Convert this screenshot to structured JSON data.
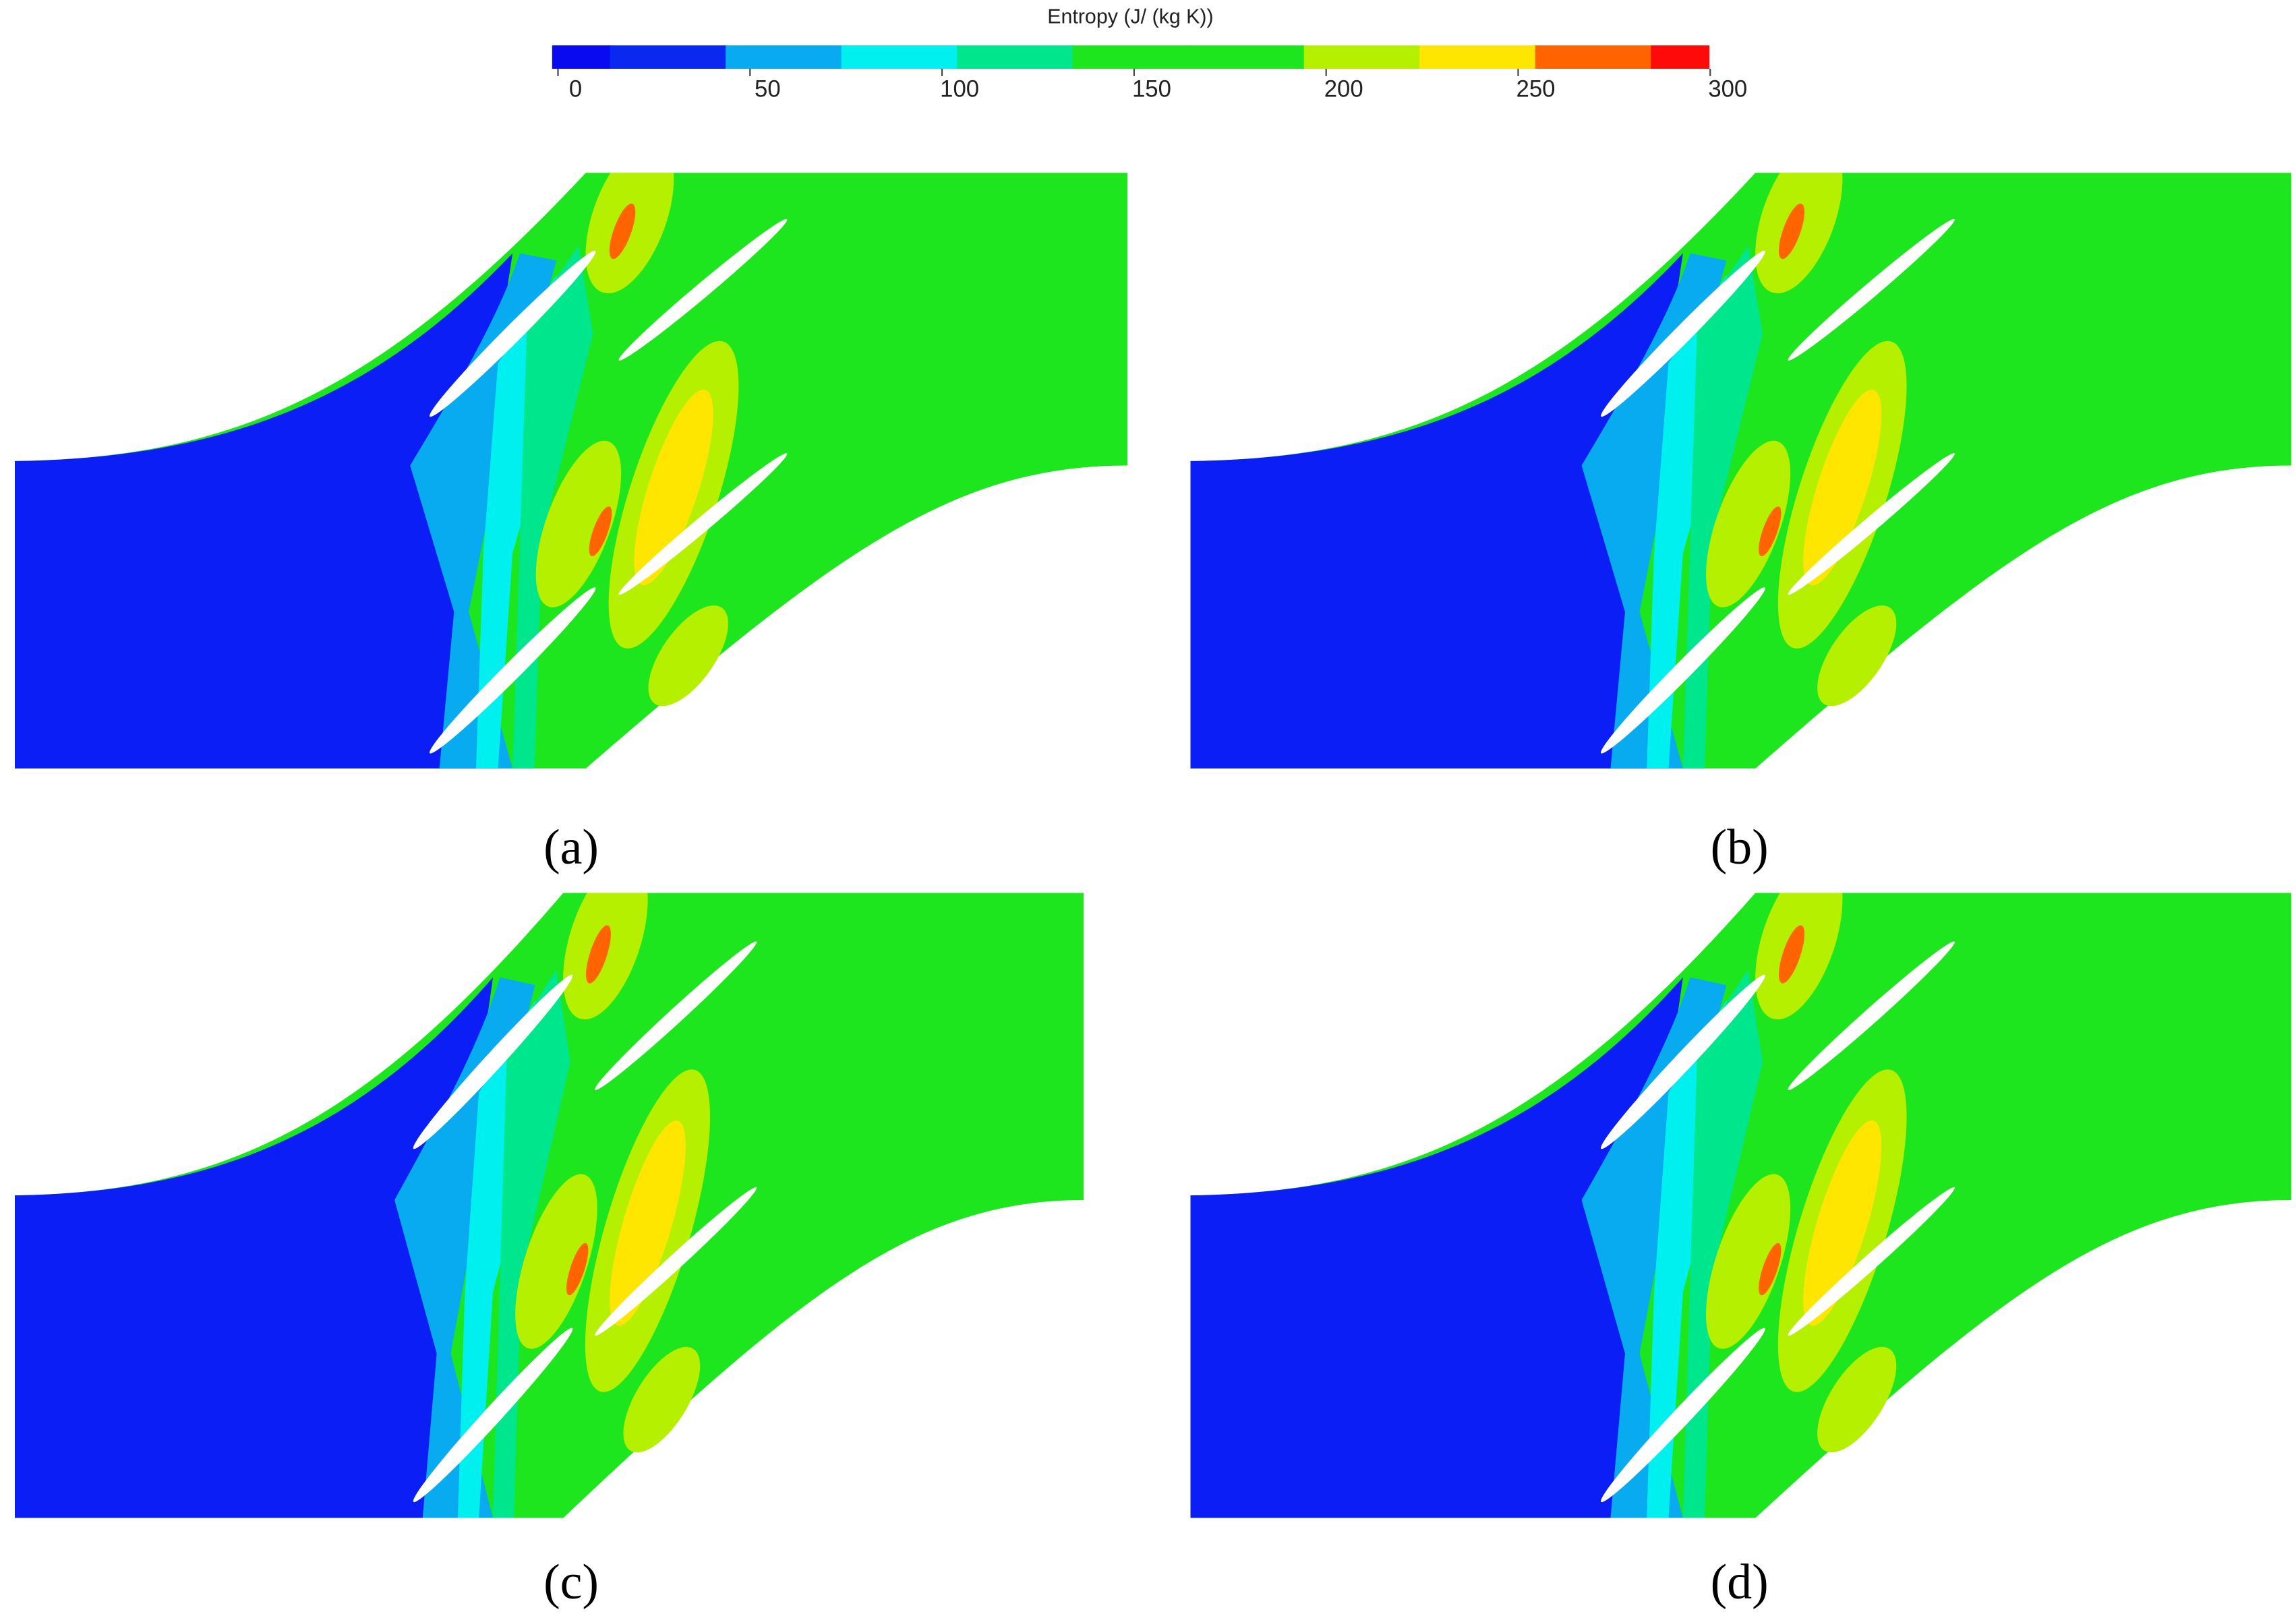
{
  "colorbar": {
    "title": "Entropy (J/ (kg K))",
    "ticks": [
      0,
      50,
      100,
      150,
      200,
      250,
      300
    ],
    "colors": [
      "#0a0af0",
      "#0a28f0",
      "#08aaf0",
      "#00f0f0",
      "#00e68c",
      "#1ee61e",
      "#1ee61e",
      "#b4f000",
      "#ffe600",
      "#ff6400",
      "#ff0a0a"
    ]
  },
  "panels": [
    {
      "label": "(a)"
    },
    {
      "label": "(b)"
    },
    {
      "label": "(c)"
    },
    {
      "label": "(d)"
    }
  ]
}
